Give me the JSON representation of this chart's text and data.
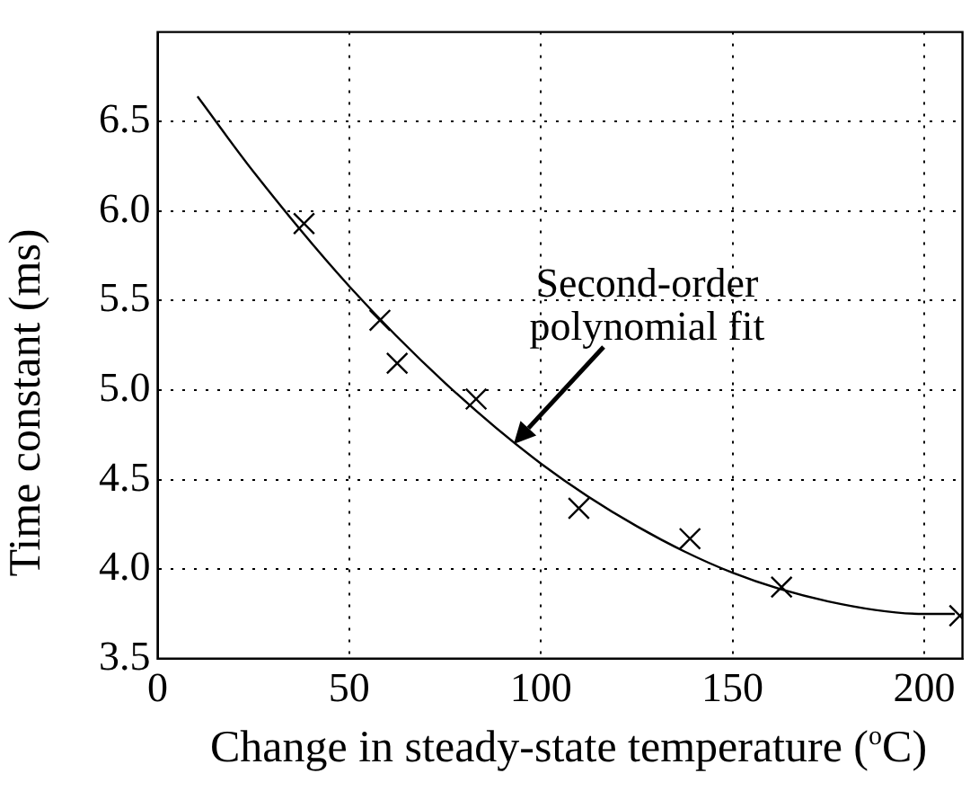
{
  "chart_data": {
    "type": "scatter",
    "xlabel": "Change in steady-state temperature ($^{o}$C)",
    "ylabel": "Time constant (ms)",
    "xlim": [
      0,
      210
    ],
    "xticks": [
      0,
      50,
      100,
      150,
      200
    ],
    "ylim": [
      3.5,
      7
    ],
    "yticks": [
      3.5,
      {
        "value": 4,
        "label": "4.0"
      },
      4.5,
      {
        "value": 5,
        "label": "5.0"
      },
      5.5,
      {
        "value": 6,
        "label": "6.0"
      },
      6.5
    ],
    "grid": true,
    "marker": "cross",
    "series": [
      {
        "color": "#000000",
        "x": [
          38.2,
          58.0,
          62.5,
          83.1,
          109.9,
          138.9,
          162.8,
          209.3
        ],
        "values": [
          5.93,
          5.39,
          5.15,
          4.95,
          4.34,
          4.17,
          3.9,
          3.74
        ]
      },
      {
        "type": "line",
        "color": "#000000",
        "marker": "none",
        "x": [
          10.4,
          25,
          50,
          75,
          100,
          125,
          150,
          175,
          200,
          208
        ],
        "values": [
          6.64,
          6.22,
          5.58,
          5.04,
          4.59,
          4.24,
          3.98,
          3.82,
          3.75,
          3.75
        ]
      }
    ],
    "annotations": [
      {
        "text": "Second-order polynomial fit",
        "x": 93,
        "y": 4.7
      }
    ]
  }
}
